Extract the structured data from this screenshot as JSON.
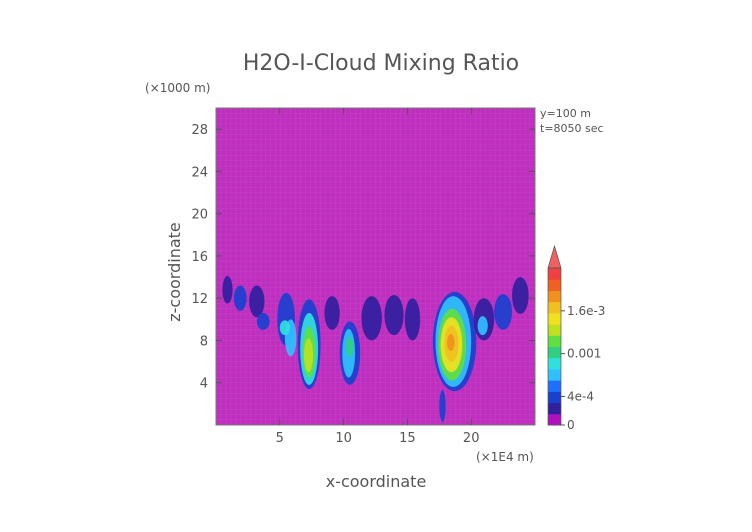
{
  "chart_data": {
    "type": "heatmap",
    "title": "H2O-I-Cloud Mixing Ratio",
    "xlabel": "x-coordinate",
    "ylabel": "z-coordinate",
    "x_unit": "(×1E4 m)",
    "y_unit": "(×1000 m)",
    "annotations": [
      "y=100 m",
      "t=8050 sec"
    ],
    "xlim": [
      0,
      25
    ],
    "ylim": [
      0,
      30
    ],
    "x_ticks": [
      5,
      10,
      15,
      20
    ],
    "y_ticks": [
      4,
      8,
      12,
      16,
      20,
      24,
      28
    ],
    "colorbar": {
      "ticks": [
        {
          "label": "0",
          "value": 0
        },
        {
          "label": "4e-4",
          "value": 0.0004
        },
        {
          "label": "0.001",
          "value": 0.001
        },
        {
          "label": "1.6e-3",
          "value": 0.0016
        }
      ],
      "colors": [
        "#b010c0",
        "#3020a0",
        "#1a40d0",
        "#2070ff",
        "#30c0ff",
        "#30e0e0",
        "#30d080",
        "#60e040",
        "#c0e020",
        "#f0e020",
        "#f0c020",
        "#f09020",
        "#f06020",
        "#f04040"
      ],
      "extend_max_color": "#f06060"
    },
    "background_color": "#bf2fbf",
    "cells": [
      {
        "x": 0.5,
        "z": 11.5,
        "w": 0.8,
        "h": 2.6,
        "level": 1
      },
      {
        "x": 1.4,
        "z": 10.8,
        "w": 1.0,
        "h": 2.4,
        "level": 2
      },
      {
        "x": 2.6,
        "z": 10.2,
        "w": 1.2,
        "h": 3.0,
        "level": 1
      },
      {
        "x": 3.2,
        "z": 9.0,
        "w": 1.0,
        "h": 1.6,
        "level": 2
      },
      {
        "x": 4.8,
        "z": 7.5,
        "w": 1.4,
        "h": 5.0,
        "level": 2
      },
      {
        "x": 5.4,
        "z": 6.5,
        "w": 0.9,
        "h": 3.5,
        "level": 4
      },
      {
        "x": 5.0,
        "z": 8.5,
        "w": 0.8,
        "h": 1.4,
        "level": 5
      },
      {
        "x": 6.4,
        "z": 3.4,
        "w": 1.8,
        "h": 8.5,
        "level": 2
      },
      {
        "x": 6.6,
        "z": 3.8,
        "w": 1.4,
        "h": 6.8,
        "level": 5
      },
      {
        "x": 6.8,
        "z": 4.5,
        "w": 1.0,
        "h": 4.8,
        "level": 7
      },
      {
        "x": 6.9,
        "z": 5.0,
        "w": 0.7,
        "h": 3.2,
        "level": 8
      },
      {
        "x": 8.5,
        "z": 9.0,
        "w": 1.2,
        "h": 3.2,
        "level": 1
      },
      {
        "x": 9.7,
        "z": 3.8,
        "w": 1.6,
        "h": 6.0,
        "level": 2
      },
      {
        "x": 9.9,
        "z": 4.5,
        "w": 1.0,
        "h": 4.6,
        "level": 4
      },
      {
        "x": 10.2,
        "z": 6.5,
        "w": 0.6,
        "h": 1.8,
        "level": 6
      },
      {
        "x": 11.4,
        "z": 8.0,
        "w": 1.6,
        "h": 4.2,
        "level": 1
      },
      {
        "x": 13.2,
        "z": 8.5,
        "w": 1.5,
        "h": 3.8,
        "level": 1
      },
      {
        "x": 14.8,
        "z": 8.0,
        "w": 1.2,
        "h": 4.0,
        "level": 1
      },
      {
        "x": 17.0,
        "z": 3.2,
        "w": 3.4,
        "h": 9.4,
        "level": 2
      },
      {
        "x": 17.2,
        "z": 3.6,
        "w": 2.8,
        "h": 8.6,
        "level": 4
      },
      {
        "x": 17.4,
        "z": 4.2,
        "w": 2.2,
        "h": 6.8,
        "level": 7
      },
      {
        "x": 17.6,
        "z": 5.0,
        "w": 1.7,
        "h": 5.2,
        "level": 9
      },
      {
        "x": 17.9,
        "z": 6.0,
        "w": 1.1,
        "h": 3.4,
        "level": 10
      },
      {
        "x": 18.1,
        "z": 7.0,
        "w": 0.6,
        "h": 1.6,
        "level": 11
      },
      {
        "x": 17.5,
        "z": 0.3,
        "w": 0.5,
        "h": 3.0,
        "level": 2
      },
      {
        "x": 20.2,
        "z": 8.0,
        "w": 1.6,
        "h": 4.0,
        "level": 1
      },
      {
        "x": 21.8,
        "z": 9.0,
        "w": 1.4,
        "h": 3.4,
        "level": 2
      },
      {
        "x": 23.2,
        "z": 10.5,
        "w": 1.3,
        "h": 3.5,
        "level": 1
      },
      {
        "x": 20.5,
        "z": 8.5,
        "w": 0.8,
        "h": 1.8,
        "level": 4
      }
    ]
  }
}
